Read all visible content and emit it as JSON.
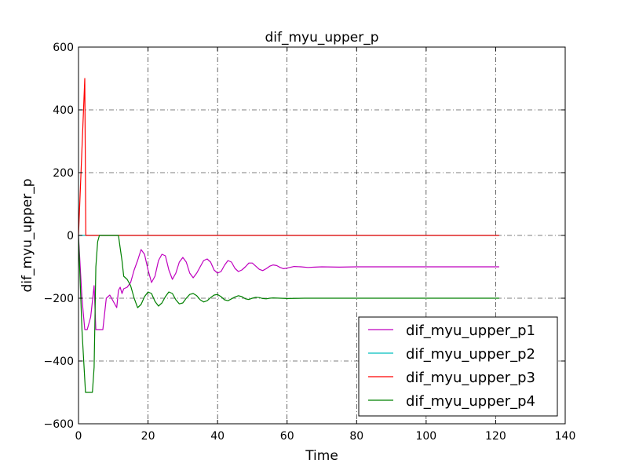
{
  "chart_data": {
    "type": "line",
    "title": "dif_myu_upper_p",
    "xlabel": "Time",
    "ylabel": "dif_myu_upper_p",
    "xlim": [
      0,
      140
    ],
    "ylim": [
      -600,
      600
    ],
    "xticks": [
      0,
      20,
      40,
      60,
      80,
      100,
      120,
      140
    ],
    "yticks": [
      -600,
      -400,
      -200,
      0,
      200,
      400,
      600
    ],
    "xtick_labels": [
      "0",
      "20",
      "40",
      "60",
      "80",
      "100",
      "120",
      "140"
    ],
    "ytick_labels": [
      "−600",
      "−400",
      "−200",
      "0",
      "200",
      "400",
      "600"
    ],
    "grid": true,
    "legend_position": "lower-right",
    "series": [
      {
        "name": "dif_myu_upper_p1",
        "color": "#bf00bf",
        "x": [
          0,
          1,
          1.8,
          2.5,
          3.5,
          4.5,
          5,
          5.5,
          7,
          8,
          9,
          10,
          11,
          11.5,
          12,
          12.5,
          13,
          14,
          15,
          16,
          17,
          18,
          19,
          20,
          21,
          22,
          23,
          24,
          25,
          26,
          27,
          28,
          29,
          30,
          31,
          32,
          33,
          34,
          35,
          36,
          37,
          38,
          39,
          40,
          41,
          42,
          43,
          44,
          45,
          46,
          47,
          48,
          49,
          50,
          51,
          52,
          53,
          54,
          55,
          56,
          57,
          58,
          59,
          60,
          62,
          64,
          66,
          68,
          70,
          75,
          80,
          90,
          100,
          110,
          121
        ],
        "y": [
          0,
          -200,
          -300,
          -300,
          -260,
          -160,
          -300,
          -300,
          -300,
          -200,
          -190,
          -210,
          -230,
          -175,
          -165,
          -185,
          -170,
          -165,
          -150,
          -110,
          -80,
          -45,
          -60,
          -110,
          -150,
          -130,
          -80,
          -60,
          -65,
          -110,
          -140,
          -120,
          -85,
          -70,
          -85,
          -120,
          -135,
          -120,
          -100,
          -80,
          -75,
          -85,
          -110,
          -120,
          -115,
          -95,
          -80,
          -85,
          -105,
          -115,
          -110,
          -100,
          -88,
          -88,
          -98,
          -108,
          -112,
          -106,
          -98,
          -94,
          -96,
          -102,
          -106,
          -104,
          -99,
          -100,
          -102,
          -101,
          -100,
          -101,
          -100,
          -100,
          -100,
          -100,
          -100
        ]
      },
      {
        "name": "dif_myu_upper_p2",
        "color": "#00bfbf",
        "x": [
          0,
          121
        ],
        "y": [
          0,
          0
        ]
      },
      {
        "name": "dif_myu_upper_p3",
        "color": "#ff0000",
        "x": [
          0,
          1.8,
          2.1,
          3,
          121
        ],
        "y": [
          0,
          500,
          0,
          0,
          0
        ]
      },
      {
        "name": "dif_myu_upper_p4",
        "color": "#008000",
        "x": [
          0,
          1,
          2,
          3,
          4,
          4.5,
          5,
          5.5,
          6,
          7,
          8,
          9,
          10,
          11,
          11.5,
          12,
          12.5,
          13,
          14,
          15,
          16,
          17,
          18,
          19,
          20,
          21,
          22,
          23,
          24,
          25,
          26,
          27,
          28,
          29,
          30,
          31,
          32,
          33,
          34,
          35,
          36,
          37,
          38,
          39,
          40,
          41,
          42,
          43,
          44,
          45,
          46,
          47,
          48,
          49,
          50,
          51,
          52,
          53,
          54,
          55,
          56,
          58,
          60,
          65,
          70,
          80,
          90,
          100,
          110,
          121
        ],
        "y": [
          0,
          -300,
          -500,
          -500,
          -500,
          -420,
          -100,
          -20,
          0,
          0,
          0,
          0,
          0,
          0,
          0,
          -40,
          -80,
          -130,
          -140,
          -160,
          -200,
          -230,
          -220,
          -195,
          -180,
          -185,
          -210,
          -225,
          -215,
          -195,
          -180,
          -185,
          -205,
          -218,
          -215,
          -200,
          -188,
          -185,
          -192,
          -205,
          -212,
          -208,
          -198,
          -190,
          -188,
          -195,
          -205,
          -208,
          -202,
          -196,
          -192,
          -195,
          -202,
          -204,
          -200,
          -197,
          -198,
          -201,
          -202,
          -200,
          -199,
          -200,
          -201,
          -200,
          -200,
          -200,
          -200,
          -200,
          -200,
          -200
        ]
      }
    ]
  }
}
